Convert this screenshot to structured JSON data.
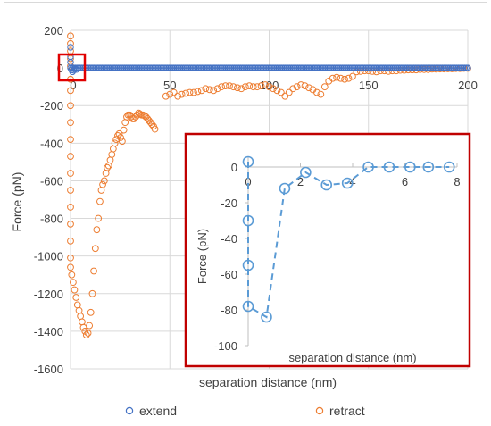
{
  "chart_data": [
    {
      "type": "scatter",
      "xlabel": "separation distance (nm)",
      "ylabel": "Force (pN)",
      "xlim": [
        0,
        200
      ],
      "ylim": [
        -1600,
        200
      ],
      "xticks": [
        0,
        50,
        100,
        150,
        200
      ],
      "yticks": [
        200,
        0,
        -200,
        -400,
        -600,
        -800,
        -1000,
        -1200,
        -1400,
        -1600
      ],
      "grid": true,
      "legend_position": "bottom",
      "series": [
        {
          "name": "extend",
          "color": "#4472c4",
          "marker": "open-circle",
          "x_range": [
            0,
            200
          ],
          "step": 0.8,
          "value": 0,
          "extra_points": [
            [
              0,
              110
            ],
            [
              0,
              60
            ],
            [
              0,
              30
            ],
            [
              0.5,
              -10
            ],
            [
              1,
              -20
            ],
            [
              1.5,
              -12
            ],
            [
              2.2,
              -5
            ],
            [
              3,
              -8
            ]
          ]
        },
        {
          "name": "retract",
          "color": "#ed7d31",
          "marker": "open-circle",
          "points": [
            [
              0,
              170
            ],
            [
              0,
              130
            ],
            [
              0,
              90
            ],
            [
              0,
              50
            ],
            [
              0,
              10
            ],
            [
              0,
              -60
            ],
            [
              0,
              -120
            ],
            [
              0,
              -200
            ],
            [
              0,
              -290
            ],
            [
              0,
              -380
            ],
            [
              0,
              -470
            ],
            [
              0,
              -560
            ],
            [
              0,
              -650
            ],
            [
              0,
              -740
            ],
            [
              0,
              -830
            ],
            [
              0,
              -920
            ],
            [
              0,
              -1010
            ],
            [
              0,
              -1060
            ],
            [
              0.6,
              -1100
            ],
            [
              1.3,
              -1140
            ],
            [
              2,
              -1180
            ],
            [
              2.8,
              -1220
            ],
            [
              3.5,
              -1260
            ],
            [
              4.3,
              -1290
            ],
            [
              5,
              -1320
            ],
            [
              5.8,
              -1350
            ],
            [
              6.5,
              -1380
            ],
            [
              7.3,
              -1400
            ],
            [
              8,
              -1420
            ],
            [
              8.8,
              -1410
            ],
            [
              9.5,
              -1370
            ],
            [
              10.2,
              -1300
            ],
            [
              11,
              -1200
            ],
            [
              11.7,
              -1080
            ],
            [
              12.5,
              -960
            ],
            [
              13.2,
              -860
            ],
            [
              14,
              -800
            ],
            [
              14.8,
              -710
            ],
            [
              15.5,
              -650
            ],
            [
              16.2,
              -620
            ],
            [
              17,
              -600
            ],
            [
              17.8,
              -560
            ],
            [
              18.5,
              -530
            ],
            [
              19.2,
              -520
            ],
            [
              20,
              -490
            ],
            [
              20.8,
              -460
            ],
            [
              21.5,
              -430
            ],
            [
              22.3,
              -400
            ],
            [
              23,
              -380
            ],
            [
              23.8,
              -360
            ],
            [
              24.5,
              -350
            ],
            [
              25.2,
              -370
            ],
            [
              26,
              -390
            ],
            [
              26.8,
              -330
            ],
            [
              27.5,
              -290
            ],
            [
              28.3,
              -260
            ],
            [
              29,
              -250
            ],
            [
              29.8,
              -250
            ],
            [
              30.5,
              -260
            ],
            [
              31.3,
              -270
            ],
            [
              32,
              -270
            ],
            [
              32.8,
              -260
            ],
            [
              33.5,
              -250
            ],
            [
              34.3,
              -240
            ],
            [
              35,
              -245
            ],
            [
              35.8,
              -250
            ],
            [
              36.5,
              -250
            ],
            [
              37.3,
              -255
            ],
            [
              38,
              -260
            ],
            [
              38.8,
              -270
            ],
            [
              39.5,
              -280
            ],
            [
              40.3,
              -290
            ],
            [
              41,
              -300
            ],
            [
              41.8,
              -310
            ],
            [
              42.5,
              -325
            ],
            [
              48,
              -150
            ],
            [
              50,
              -140
            ],
            [
              52,
              -130
            ],
            [
              54,
              -150
            ],
            [
              56,
              -140
            ],
            [
              58,
              -135
            ],
            [
              60,
              -130
            ],
            [
              62,
              -130
            ],
            [
              64,
              -125
            ],
            [
              66,
              -120
            ],
            [
              68,
              -110
            ],
            [
              70,
              -115
            ],
            [
              72,
              -120
            ],
            [
              74,
              -110
            ],
            [
              76,
              -100
            ],
            [
              78,
              -95
            ],
            [
              80,
              -95
            ],
            [
              82,
              -100
            ],
            [
              84,
              -105
            ],
            [
              86,
              -110
            ],
            [
              88,
              -100
            ],
            [
              90,
              -95
            ],
            [
              92,
              -100
            ],
            [
              94,
              -100
            ],
            [
              96,
              -95
            ],
            [
              98,
              -90
            ],
            [
              100,
              -100
            ],
            [
              102,
              -110
            ],
            [
              104,
              -120
            ],
            [
              106,
              -130
            ],
            [
              108,
              -150
            ],
            [
              110,
              -130
            ],
            [
              112,
              -110
            ],
            [
              114,
              -100
            ],
            [
              116,
              -90
            ],
            [
              118,
              -95
            ],
            [
              120,
              -105
            ],
            [
              122,
              -115
            ],
            [
              124,
              -130
            ],
            [
              126,
              -140
            ],
            [
              128,
              -100
            ],
            [
              130,
              -70
            ],
            [
              132,
              -55
            ],
            [
              134,
              -50
            ],
            [
              136,
              -55
            ],
            [
              138,
              -60
            ],
            [
              140,
              -55
            ],
            [
              142,
              -45
            ],
            [
              144,
              -20
            ],
            [
              146,
              -18
            ],
            [
              148,
              -15
            ],
            [
              150,
              -15
            ],
            [
              152,
              -18
            ],
            [
              154,
              -20
            ],
            [
              156,
              -15
            ],
            [
              158,
              -15
            ],
            [
              160,
              -18
            ],
            [
              162,
              -15
            ],
            [
              164,
              -15
            ],
            [
              166,
              -12
            ],
            [
              168,
              -12
            ],
            [
              170,
              -10
            ],
            [
              172,
              -10
            ],
            [
              174,
              -10
            ],
            [
              176,
              -8
            ],
            [
              178,
              -8
            ],
            [
              180,
              -8
            ],
            [
              182,
              -6
            ],
            [
              184,
              -6
            ],
            [
              186,
              -5
            ],
            [
              188,
              -5
            ],
            [
              190,
              -4
            ],
            [
              192,
              -4
            ],
            [
              194,
              -3
            ],
            [
              196,
              -3
            ],
            [
              198,
              -2
            ],
            [
              200,
              -2
            ]
          ]
        }
      ]
    },
    {
      "type": "line",
      "xlabel": "separation distance (nm)",
      "ylabel": "Force (pN)",
      "xlim": [
        0,
        8
      ],
      "ylim": [
        -100,
        0
      ],
      "xticks": [
        0,
        2,
        4,
        6,
        8
      ],
      "yticks": [
        0,
        -20,
        -40,
        -60,
        -80,
        -100
      ],
      "series": [
        {
          "color": "#5b9bd5",
          "line_style": "dashed",
          "marker": "open-circle",
          "points": [
            [
              0,
              3
            ],
            [
              0,
              -30
            ],
            [
              0,
              -55
            ],
            [
              0,
              -78
            ],
            [
              0.7,
              -84
            ],
            [
              1.4,
              -12
            ],
            [
              2.2,
              -3
            ],
            [
              3.0,
              -10
            ],
            [
              3.8,
              -9
            ],
            [
              4.6,
              0
            ],
            [
              5.4,
              0
            ],
            [
              6.2,
              0
            ],
            [
              6.9,
              0
            ],
            [
              7.7,
              0
            ]
          ]
        }
      ]
    }
  ]
}
